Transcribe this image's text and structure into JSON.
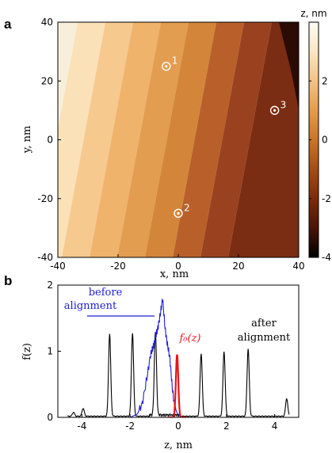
{
  "chart_data": [
    {
      "panel": "a",
      "type": "heatmap",
      "xlabel": "x, nm",
      "ylabel": "y, nm",
      "xlim": [
        -40,
        40
      ],
      "ylim": [
        -40,
        40
      ],
      "x_ticks": [
        "-40",
        "-20",
        "0",
        "20",
        "40"
      ],
      "y_ticks": [
        "40",
        "20",
        "0",
        "-20",
        "-40"
      ],
      "colorbar": {
        "label": "z, nm",
        "range": [
          -4,
          4
        ],
        "ticks": [
          "2",
          "0",
          "-2",
          "-4"
        ],
        "stops": [
          "#fdfbf5",
          "#fbe6c2",
          "#f3c187",
          "#e39c4e",
          "#c7762a",
          "#a34e17",
          "#7a2d0c",
          "#4a1406",
          "#000000"
        ]
      },
      "terraces": [
        {
          "z": 3.6,
          "color": "#f7efdc"
        },
        {
          "z": 2.9,
          "color": "#fbe1b8"
        },
        {
          "z": 2.0,
          "color": "#f6c98f"
        },
        {
          "z": 1.0,
          "color": "#f0b36c"
        },
        {
          "z": 0.0,
          "color": "#e39d50"
        },
        {
          "z": -1.0,
          "color": "#d3863a"
        },
        {
          "z": -2.0,
          "color": "#b9602a"
        },
        {
          "z": -2.9,
          "color": "#9a4220"
        },
        {
          "z": -3.6,
          "color": "#7a2d13"
        }
      ],
      "markers": [
        {
          "label": "1",
          "x": 2,
          "y": 25
        },
        {
          "label": "2",
          "x": 6,
          "y": -25
        },
        {
          "label": "3",
          "x": 38,
          "y": 10
        }
      ]
    },
    {
      "panel": "b",
      "type": "line",
      "xlabel": "z, nm",
      "ylabel": "f(z)",
      "xlim": [
        -5,
        5
      ],
      "ylim": [
        0,
        2
      ],
      "x_ticks": [
        "-4",
        "-2",
        "0",
        "2",
        "4"
      ],
      "y_ticks": [
        "2",
        "1",
        "0"
      ],
      "peaks_after_alignment": {
        "color": "#000000",
        "centers": [
          -4.35,
          -3.95,
          -2.85,
          -1.9,
          -0.95,
          0.95,
          1.9,
          2.9,
          4.5
        ],
        "heights": [
          0.06,
          0.12,
          1.25,
          1.26,
          1.27,
          0.95,
          0.98,
          1.02,
          0.27
        ]
      },
      "before_alignment": {
        "color": "#1f1fd6",
        "points": [
          [
            -2.0,
            0.0
          ],
          [
            -1.7,
            0.05
          ],
          [
            -1.5,
            0.2
          ],
          [
            -1.3,
            0.6
          ],
          [
            -1.15,
            0.95
          ],
          [
            -1.05,
            1.05
          ],
          [
            -0.95,
            1.2
          ],
          [
            -0.85,
            1.35
          ],
          [
            -0.75,
            1.55
          ],
          [
            -0.65,
            1.8
          ],
          [
            -0.55,
            1.35
          ],
          [
            -0.45,
            1.1
          ],
          [
            -0.35,
            0.9
          ],
          [
            -0.25,
            0.45
          ],
          [
            -0.15,
            0.15
          ],
          [
            0.0,
            0.03
          ],
          [
            0.2,
            0.0
          ]
        ]
      },
      "f0": {
        "color": "#e8141b",
        "center": -0.05,
        "height": 0.95
      },
      "annotations": {
        "before": [
          "before",
          "alignment"
        ],
        "after": [
          "after",
          "alignment"
        ],
        "f0": "f₀(z)"
      }
    }
  ],
  "labels": {
    "panel_a": "a",
    "panel_b": "b"
  }
}
